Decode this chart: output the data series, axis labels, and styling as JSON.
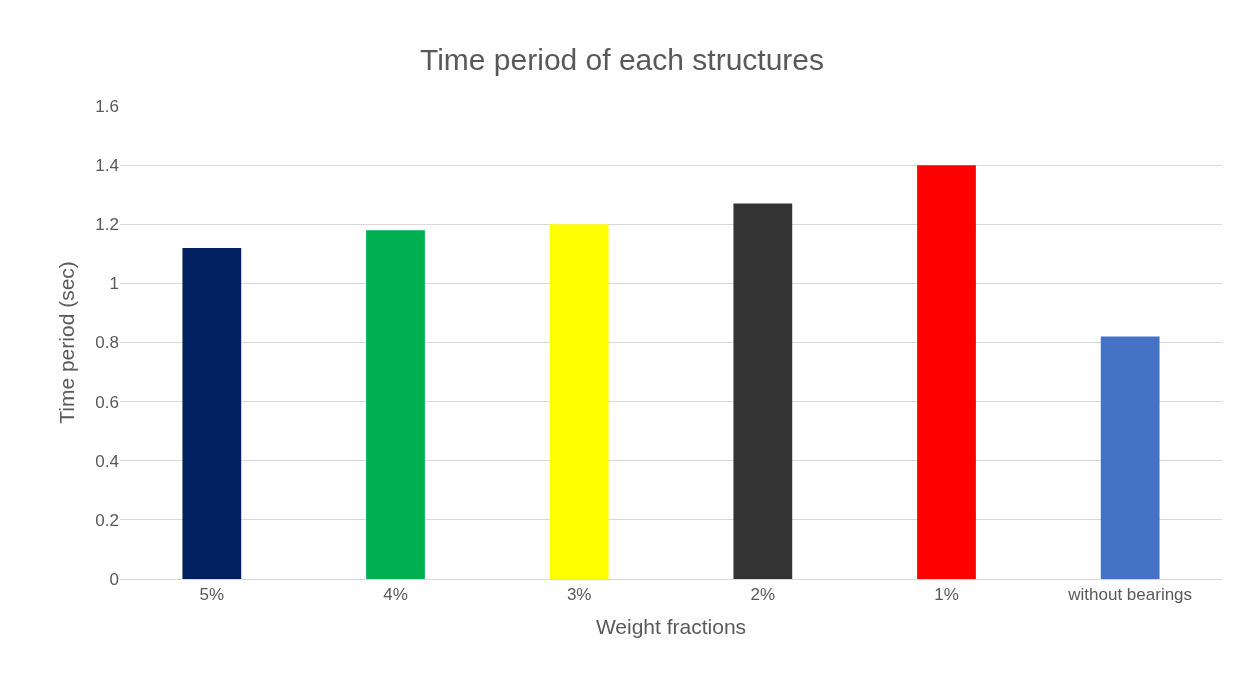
{
  "chart_data": {
    "type": "bar",
    "title": "Time period of each structures",
    "xlabel": "Weight fractions",
    "ylabel": "Time period (sec)",
    "categories": [
      "5%",
      "4%",
      "3%",
      "2%",
      "1%",
      "without bearings"
    ],
    "values": [
      1.12,
      1.18,
      1.2,
      1.27,
      1.4,
      0.82
    ],
    "colors": [
      "#002060",
      "#00b050",
      "#ffff00",
      "#333333",
      "#ff0000",
      "#4472c4"
    ],
    "ylim": [
      0,
      1.6
    ],
    "yticks": [
      0,
      0.2,
      0.4,
      0.6,
      0.8,
      1,
      1.2,
      1.4,
      1.6
    ],
    "grid": "y"
  }
}
